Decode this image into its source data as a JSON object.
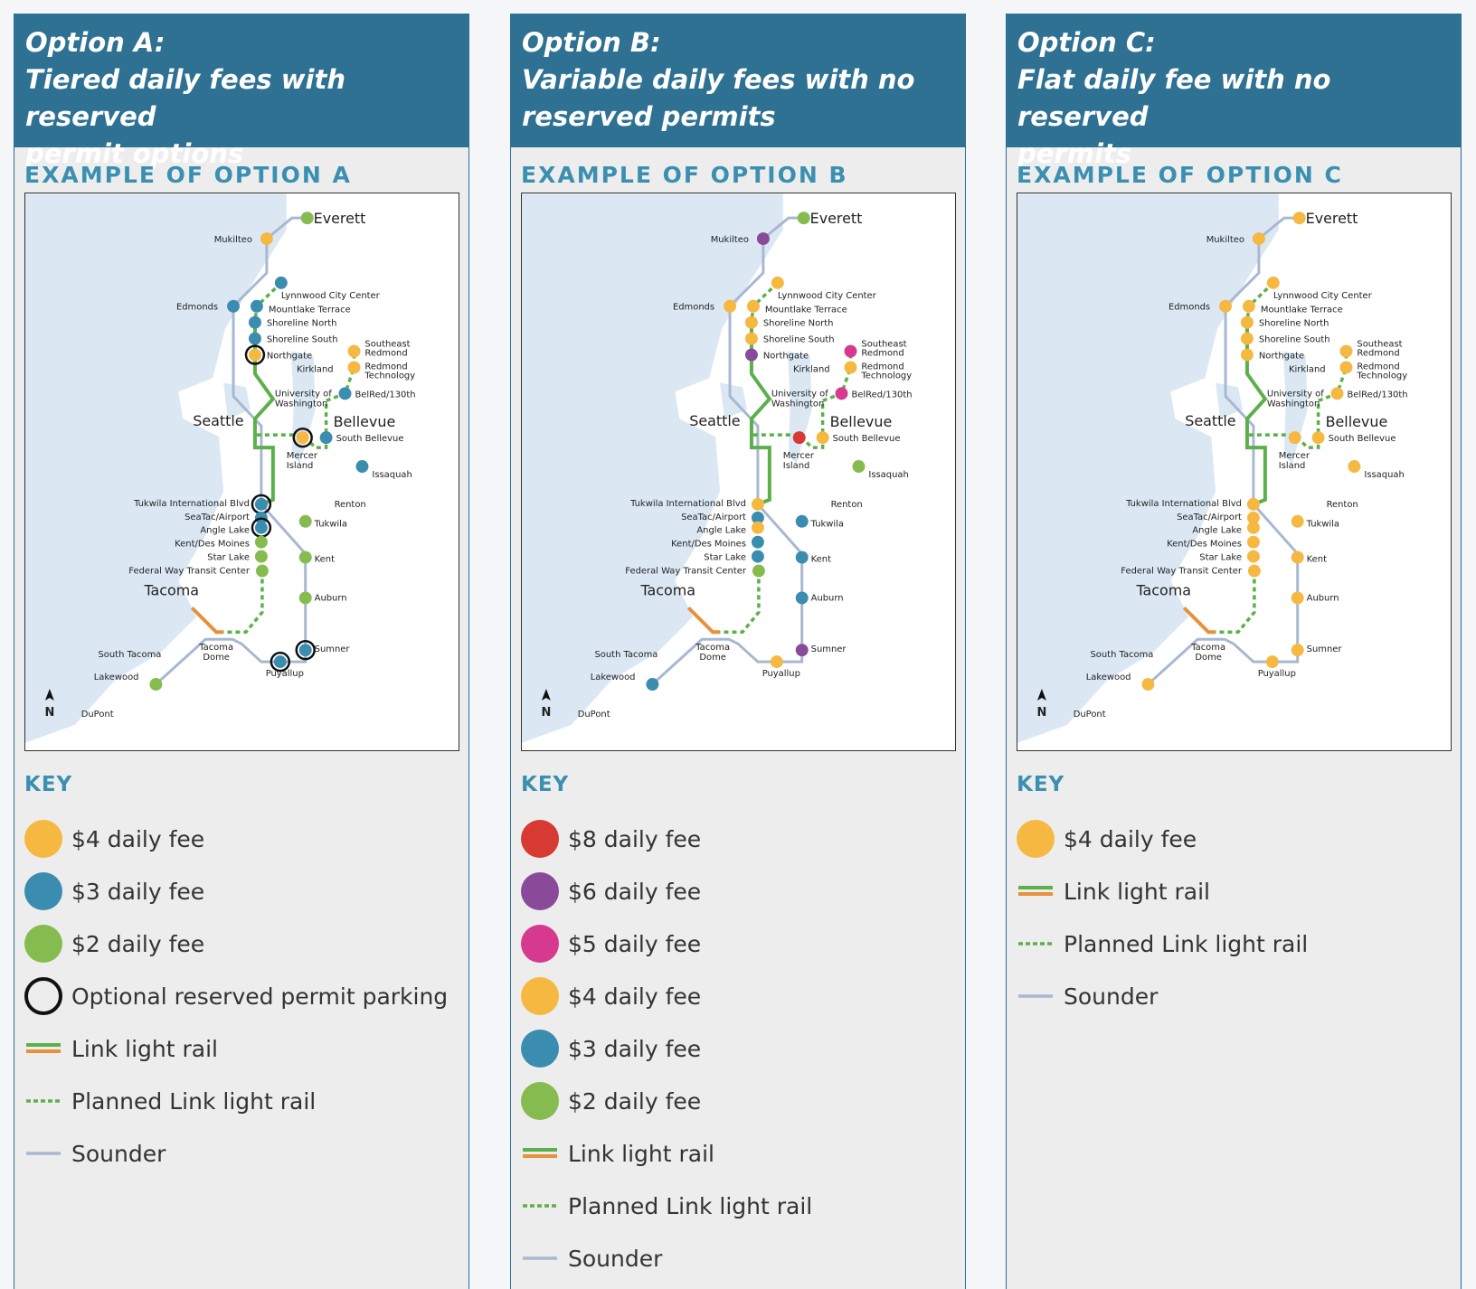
{
  "colors": {
    "fee_8": "#d63a32",
    "fee_6": "#8a4a9a",
    "fee_5": "#d63a8e",
    "fee_4": "#f5b942",
    "fee_3": "#3b8db0",
    "fee_2": "#86bc4f",
    "link": "#5cb04b",
    "link_south": "#e8903a",
    "sounder": "#a8b8d0",
    "water": "#dbe8f4"
  },
  "map": {
    "north_label": "N",
    "stations": {
      "everett": "Everett",
      "mukilteo": "Mukilteo",
      "edmonds": "Edmonds",
      "lynnwood": "Lynnwood City Center",
      "mountlake": "Mountlake Terrace",
      "shoreline_n": "Shoreline North",
      "shoreline_s": "Shoreline South",
      "northgate": "Northgate",
      "se_redmond_1": "Southeast",
      "se_redmond_2": "Redmond",
      "redmond_tech_1": "Redmond",
      "redmond_tech_2": "Technology",
      "kirkland": "Kirkland",
      "uw_1": "University of",
      "uw_2": "Washington",
      "belred": "BelRed/130th",
      "seattle": "Seattle",
      "bellevue": "Bellevue",
      "south_bellevue": "South Bellevue",
      "mercer_1": "Mercer",
      "mercer_2": "Island",
      "issaquah": "Issaquah",
      "renton": "Renton",
      "tukwila_intl": "Tukwila International Blvd",
      "seatac": "SeaTac/Airport",
      "angle_lake": "Angle Lake",
      "kent_des_moines": "Kent/Des Moines",
      "star_lake": "Star Lake",
      "federal_way": "Federal Way Transit Center",
      "tukwila": "Tukwila",
      "kent": "Kent",
      "auburn": "Auburn",
      "tacoma": "Tacoma",
      "sumner": "Sumner",
      "south_tacoma": "South Tacoma",
      "tacoma_dome_1": "Tacoma",
      "tacoma_dome_2": "Dome",
      "puyallup": "Puyallup",
      "lakewood": "Lakewood",
      "dupont": "DuPont"
    }
  },
  "panels": [
    {
      "title_lines": [
        "Option A:",
        "Tiered daily fees with reserved",
        "permit options"
      ],
      "example_heading": "EXAMPLE OF OPTION A",
      "key_heading": "KEY",
      "fees": {
        "everett": "fee_2",
        "mukilteo": "fee_4",
        "edmonds": "fee_3",
        "lynnwood": "fee_3",
        "mountlake": "fee_3",
        "shoreline_n": "fee_3",
        "shoreline_s": "fee_3",
        "northgate": "fee_4",
        "se_redmond": "fee_4",
        "redmond_tech": "fee_4",
        "belred": "fee_3",
        "mercer": "fee_4",
        "south_bellevue": "fee_3",
        "issaquah": "fee_3",
        "tukwila_intl": "fee_3",
        "seatac": "fee_3",
        "angle_lake": "fee_3",
        "kent_des_moines": "fee_2",
        "star_lake": "fee_2",
        "federal_way": "fee_2",
        "tukwila": "fee_2",
        "kent": "fee_2",
        "auburn": "fee_2",
        "sumner": "fee_3",
        "puyallup": "fee_3",
        "lakewood": "fee_2"
      },
      "reserved": [
        "northgate",
        "mercer",
        "tukwila_intl",
        "angle_lake",
        "sumner",
        "puyallup"
      ],
      "key": [
        {
          "type": "dot",
          "color": "fee_4",
          "label": "$4 daily fee"
        },
        {
          "type": "dot",
          "color": "fee_3",
          "label": "$3 daily fee"
        },
        {
          "type": "dot",
          "color": "fee_2",
          "label": "$2 daily fee"
        },
        {
          "type": "ring",
          "label": "Optional reserved permit parking"
        },
        {
          "type": "link",
          "label": "Link light rail"
        },
        {
          "type": "planned",
          "label": "Planned Link light rail"
        },
        {
          "type": "sounder",
          "label": "Sounder"
        }
      ]
    },
    {
      "title_lines": [
        "Option B:",
        "Variable daily fees with no",
        "reserved permits"
      ],
      "example_heading": "EXAMPLE OF OPTION B",
      "key_heading": "KEY",
      "fees": {
        "everett": "fee_2",
        "mukilteo": "fee_6",
        "edmonds": "fee_4",
        "lynnwood": "fee_4",
        "mountlake": "fee_4",
        "shoreline_n": "fee_4",
        "shoreline_s": "fee_4",
        "northgate": "fee_6",
        "se_redmond": "fee_5",
        "redmond_tech": "fee_4",
        "belred": "fee_5",
        "mercer": "fee_8",
        "south_bellevue": "fee_4",
        "issaquah": "fee_2",
        "tukwila_intl": "fee_4",
        "seatac": "fee_3",
        "angle_lake": "fee_4",
        "kent_des_moines": "fee_3",
        "star_lake": "fee_3",
        "federal_way": "fee_2",
        "tukwila": "fee_3",
        "kent": "fee_3",
        "auburn": "fee_3",
        "sumner": "fee_6",
        "puyallup": "fee_4",
        "lakewood": "fee_3"
      },
      "reserved": [],
      "key": [
        {
          "type": "dot",
          "color": "fee_8",
          "label": "$8 daily fee"
        },
        {
          "type": "dot",
          "color": "fee_6",
          "label": "$6 daily fee"
        },
        {
          "type": "dot",
          "color": "fee_5",
          "label": "$5 daily fee"
        },
        {
          "type": "dot",
          "color": "fee_4",
          "label": "$4 daily fee"
        },
        {
          "type": "dot",
          "color": "fee_3",
          "label": "$3 daily fee"
        },
        {
          "type": "dot",
          "color": "fee_2",
          "label": "$2 daily fee"
        },
        {
          "type": "link",
          "label": "Link light rail"
        },
        {
          "type": "planned",
          "label": "Planned Link light rail"
        },
        {
          "type": "sounder",
          "label": "Sounder"
        }
      ]
    },
    {
      "title_lines": [
        "Option C:",
        "Flat daily fee with no reserved",
        "permits"
      ],
      "example_heading": "EXAMPLE OF OPTION C",
      "key_heading": "KEY",
      "fees": {
        "everett": "fee_4",
        "mukilteo": "fee_4",
        "edmonds": "fee_4",
        "lynnwood": "fee_4",
        "mountlake": "fee_4",
        "shoreline_n": "fee_4",
        "shoreline_s": "fee_4",
        "northgate": "fee_4",
        "se_redmond": "fee_4",
        "redmond_tech": "fee_4",
        "belred": "fee_4",
        "mercer": "fee_4",
        "south_bellevue": "fee_4",
        "issaquah": "fee_4",
        "tukwila_intl": "fee_4",
        "seatac": "fee_4",
        "angle_lake": "fee_4",
        "kent_des_moines": "fee_4",
        "star_lake": "fee_4",
        "federal_way": "fee_4",
        "tukwila": "fee_4",
        "kent": "fee_4",
        "auburn": "fee_4",
        "sumner": "fee_4",
        "puyallup": "fee_4",
        "lakewood": "fee_4"
      },
      "reserved": [],
      "key": [
        {
          "type": "dot",
          "color": "fee_4",
          "label": "$4 daily fee"
        },
        {
          "type": "link",
          "label": "Link light rail"
        },
        {
          "type": "planned",
          "label": "Planned Link light rail"
        },
        {
          "type": "sounder",
          "label": "Sounder"
        }
      ]
    }
  ]
}
